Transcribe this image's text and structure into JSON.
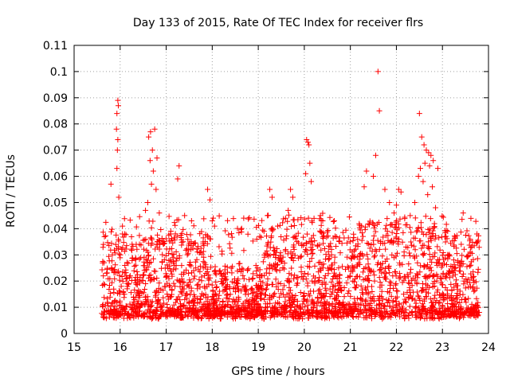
{
  "chart_data": {
    "type": "scatter",
    "title": "Day 133 of 2015, Rate Of TEC Index for receiver flrs",
    "xlabel": "GPS time / hours",
    "ylabel": "ROTI / TECUs",
    "xlim": [
      15,
      24
    ],
    "ylim": [
      0,
      0.11
    ],
    "x_ticks": [
      15,
      16,
      17,
      18,
      19,
      20,
      21,
      22,
      23,
      24
    ],
    "x_tick_labels": [
      "15",
      "16",
      "17",
      "18",
      "19",
      "20",
      "21",
      "22",
      "23",
      "24"
    ],
    "y_ticks": [
      0,
      0.01,
      0.02,
      0.03,
      0.04,
      0.05,
      0.06,
      0.07,
      0.08,
      0.09,
      0.1,
      0.11
    ],
    "y_tick_labels": [
      "0",
      "0.01",
      "0.02",
      "0.03",
      "0.04",
      "0.05",
      "0.06",
      "0.07",
      "0.08",
      "0.09",
      "0.1",
      "0.11"
    ],
    "grid": true,
    "marker": "+",
    "color": "#ff0000",
    "series": [
      {
        "name": "ROTI",
        "x_range": [
          15.6,
          23.8
        ],
        "bulk_range": [
          0.003,
          0.035
        ],
        "highlights": [
          {
            "x": 15.95,
            "y": 0.089
          },
          {
            "x": 15.96,
            "y": 0.087
          },
          {
            "x": 15.93,
            "y": 0.084
          },
          {
            "x": 15.92,
            "y": 0.078
          },
          {
            "x": 15.95,
            "y": 0.074
          },
          {
            "x": 15.94,
            "y": 0.07
          },
          {
            "x": 15.93,
            "y": 0.063
          },
          {
            "x": 15.8,
            "y": 0.057
          },
          {
            "x": 15.97,
            "y": 0.052
          },
          {
            "x": 16.05,
            "y": 0.041
          },
          {
            "x": 16.1,
            "y": 0.038
          },
          {
            "x": 16.62,
            "y": 0.075
          },
          {
            "x": 16.66,
            "y": 0.077
          },
          {
            "x": 16.75,
            "y": 0.078
          },
          {
            "x": 16.7,
            "y": 0.07
          },
          {
            "x": 16.65,
            "y": 0.066
          },
          {
            "x": 16.8,
            "y": 0.067
          },
          {
            "x": 16.72,
            "y": 0.062
          },
          {
            "x": 16.68,
            "y": 0.057
          },
          {
            "x": 16.78,
            "y": 0.055
          },
          {
            "x": 16.6,
            "y": 0.05
          },
          {
            "x": 16.55,
            "y": 0.047
          },
          {
            "x": 16.85,
            "y": 0.046
          },
          {
            "x": 17.28,
            "y": 0.064
          },
          {
            "x": 17.25,
            "y": 0.059
          },
          {
            "x": 17.4,
            "y": 0.045
          },
          {
            "x": 17.55,
            "y": 0.043
          },
          {
            "x": 17.9,
            "y": 0.055
          },
          {
            "x": 17.95,
            "y": 0.051
          },
          {
            "x": 18.0,
            "y": 0.043
          },
          {
            "x": 18.05,
            "y": 0.041
          },
          {
            "x": 19.25,
            "y": 0.055
          },
          {
            "x": 19.3,
            "y": 0.052
          },
          {
            "x": 19.2,
            "y": 0.045
          },
          {
            "x": 19.7,
            "y": 0.055
          },
          {
            "x": 19.75,
            "y": 0.052
          },
          {
            "x": 19.65,
            "y": 0.047
          },
          {
            "x": 20.05,
            "y": 0.074
          },
          {
            "x": 20.08,
            "y": 0.073
          },
          {
            "x": 20.1,
            "y": 0.072
          },
          {
            "x": 20.12,
            "y": 0.065
          },
          {
            "x": 20.03,
            "y": 0.061
          },
          {
            "x": 20.15,
            "y": 0.058
          },
          {
            "x": 20.35,
            "y": 0.045
          },
          {
            "x": 20.4,
            "y": 0.043
          },
          {
            "x": 21.6,
            "y": 0.1
          },
          {
            "x": 21.63,
            "y": 0.085
          },
          {
            "x": 21.55,
            "y": 0.068
          },
          {
            "x": 21.5,
            "y": 0.06
          },
          {
            "x": 21.35,
            "y": 0.062
          },
          {
            "x": 21.3,
            "y": 0.056
          },
          {
            "x": 21.75,
            "y": 0.055
          },
          {
            "x": 21.85,
            "y": 0.05
          },
          {
            "x": 21.95,
            "y": 0.046
          },
          {
            "x": 22.05,
            "y": 0.055
          },
          {
            "x": 22.1,
            "y": 0.054
          },
          {
            "x": 22.0,
            "y": 0.049
          },
          {
            "x": 22.5,
            "y": 0.084
          },
          {
            "x": 22.55,
            "y": 0.075
          },
          {
            "x": 22.6,
            "y": 0.072
          },
          {
            "x": 22.65,
            "y": 0.07
          },
          {
            "x": 22.7,
            "y": 0.069
          },
          {
            "x": 22.75,
            "y": 0.068
          },
          {
            "x": 22.8,
            "y": 0.066
          },
          {
            "x": 22.62,
            "y": 0.065
          },
          {
            "x": 22.72,
            "y": 0.064
          },
          {
            "x": 22.52,
            "y": 0.063
          },
          {
            "x": 22.9,
            "y": 0.063
          },
          {
            "x": 22.48,
            "y": 0.06
          },
          {
            "x": 22.58,
            "y": 0.058
          },
          {
            "x": 22.78,
            "y": 0.056
          },
          {
            "x": 22.68,
            "y": 0.053
          },
          {
            "x": 22.4,
            "y": 0.05
          },
          {
            "x": 22.85,
            "y": 0.048
          },
          {
            "x": 22.3,
            "y": 0.045
          },
          {
            "x": 23.45,
            "y": 0.046
          },
          {
            "x": 23.75,
            "y": 0.038
          },
          {
            "x": 23.6,
            "y": 0.036
          }
        ]
      }
    ]
  }
}
